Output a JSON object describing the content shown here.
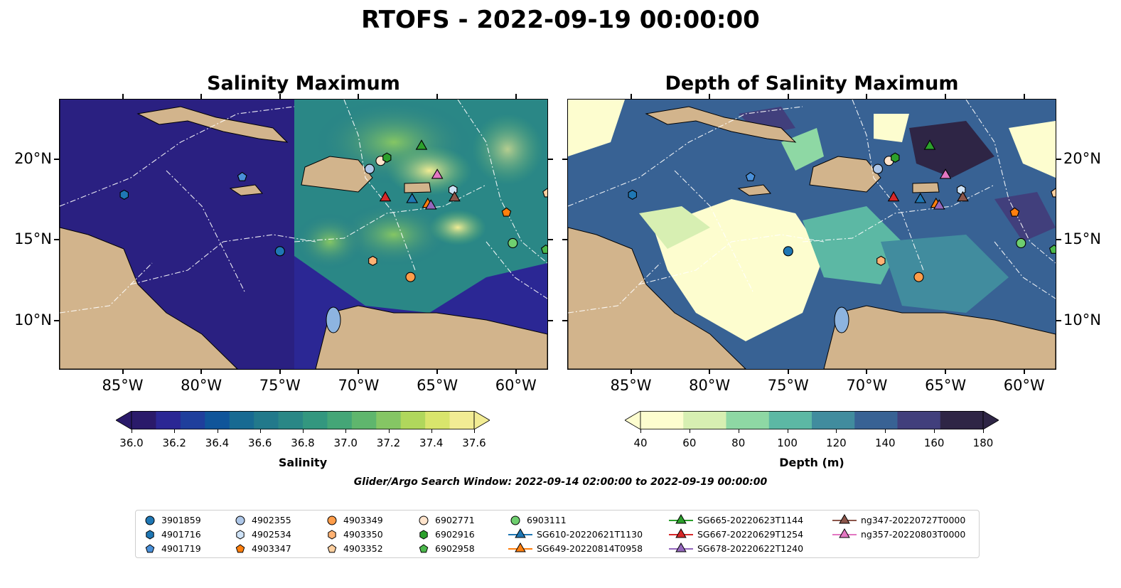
{
  "title": "RTOFS - 2022-09-19 00:00:00",
  "left_map": {
    "title": "Salinity Maximum",
    "colorbar": {
      "label": "Salinity",
      "ticks": [
        "36.0",
        "36.2",
        "36.4",
        "36.6",
        "36.8",
        "37.0",
        "37.2",
        "37.4",
        "37.6"
      ],
      "colors": [
        "#2a1a6a",
        "#2b2794",
        "#1f3f9c",
        "#10559a",
        "#186a92",
        "#22798b",
        "#2a8786",
        "#33977f",
        "#44a677",
        "#5fb66d",
        "#85c664",
        "#b0d75c",
        "#d9e56c",
        "#f2ec94"
      ]
    }
  },
  "right_map": {
    "title": "Depth of Salinity Maximum",
    "colorbar": {
      "label": "Depth (m)",
      "ticks": [
        "40",
        "60",
        "80",
        "100",
        "120",
        "140",
        "160",
        "180"
      ],
      "colors": [
        "#fdfdcf",
        "#d7efb2",
        "#8ed8a4",
        "#5cb8a4",
        "#418c9e",
        "#386294",
        "#413f7c",
        "#2e2545"
      ]
    }
  },
  "longitude_ticks": [
    "85°W",
    "80°W",
    "75°W",
    "70°W",
    "65°W",
    "60°W"
  ],
  "latitude_ticks": [
    "20°N",
    "15°N",
    "10°N"
  ],
  "search_window": "Glider/Argo Search Window: 2022-09-14 02:00:00 to 2022-09-19 00:00:00",
  "legend": {
    "items": [
      {
        "label": "3901859",
        "marker": "circle",
        "color": "#1f77b4"
      },
      {
        "label": "4901716",
        "marker": "hexagon",
        "color": "#1f77b4"
      },
      {
        "label": "4901719",
        "marker": "pentagon",
        "color": "#4a90d9"
      },
      {
        "label": "4902355",
        "marker": "circle",
        "color": "#aec7e8"
      },
      {
        "label": "4902534",
        "marker": "hexagon",
        "color": "#cfe3f7"
      },
      {
        "label": "4903347",
        "marker": "pentagon",
        "color": "#ff7f0e"
      },
      {
        "label": "4903349",
        "marker": "circle",
        "color": "#ff9d4a"
      },
      {
        "label": "4903350",
        "marker": "hexagon",
        "color": "#ffb273"
      },
      {
        "label": "4903352",
        "marker": "pentagon",
        "color": "#ffd0a0"
      },
      {
        "label": "6902771",
        "marker": "circle",
        "color": "#ffe4cc"
      },
      {
        "label": "6902916",
        "marker": "hexagon",
        "color": "#2ca02c"
      },
      {
        "label": "6902958",
        "marker": "pentagon",
        "color": "#4cb84c"
      },
      {
        "label": "6903111",
        "marker": "circle",
        "color": "#6fcf6f"
      },
      {
        "label": "SG610-20220621T1130",
        "marker": "triangle",
        "color": "#1f77b4"
      },
      {
        "label": "SG649-20220814T0958",
        "marker": "triangle",
        "color": "#ff7f0e"
      },
      {
        "label": "SG665-20220623T1144",
        "marker": "triangle",
        "color": "#2ca02c"
      },
      {
        "label": "SG667-20220629T1254",
        "marker": "triangle",
        "color": "#d62728"
      },
      {
        "label": "SG678-20220622T1240",
        "marker": "triangle",
        "color": "#9467bd"
      },
      {
        "label": "ng347-20220727T0000",
        "marker": "triangle",
        "color": "#8c564b"
      },
      {
        "label": "ng357-20220803T0000",
        "marker": "triangle",
        "color": "#e377c2"
      }
    ]
  },
  "observations": [
    {
      "id": "3901859",
      "marker": "circle",
      "color": "#1f77b4",
      "lon": -75.0,
      "lat": 14.3
    },
    {
      "id": "4901716",
      "marker": "hexagon",
      "color": "#1f77b4",
      "lon": -84.9,
      "lat": 17.8
    },
    {
      "id": "4901719",
      "marker": "pentagon",
      "color": "#4a90d9",
      "lon": -77.4,
      "lat": 18.9
    },
    {
      "id": "4902355",
      "marker": "circle",
      "color": "#aec7e8",
      "lon": -69.3,
      "lat": 19.4
    },
    {
      "id": "4902534",
      "marker": "hexagon",
      "color": "#cfe3f7",
      "lon": -64.0,
      "lat": 18.1
    },
    {
      "id": "4903347",
      "marker": "pentagon",
      "color": "#ff7f0e",
      "lon": -60.6,
      "lat": 16.7
    },
    {
      "id": "4903349",
      "marker": "circle",
      "color": "#ff9d4a",
      "lon": -66.7,
      "lat": 12.7
    },
    {
      "id": "4903350",
      "marker": "hexagon",
      "color": "#ffb273",
      "lon": -69.1,
      "lat": 13.7
    },
    {
      "id": "4903352",
      "marker": "pentagon",
      "color": "#ffd0a0",
      "lon": -58.0,
      "lat": 17.9
    },
    {
      "id": "6902771",
      "marker": "circle",
      "color": "#ffe4cc",
      "lon": -68.6,
      "lat": 19.9
    },
    {
      "id": "6902916",
      "marker": "hexagon",
      "color": "#2ca02c",
      "lon": -68.2,
      "lat": 20.1
    },
    {
      "id": "6902958",
      "marker": "pentagon",
      "color": "#4cb84c",
      "lon": -58.1,
      "lat": 14.4
    },
    {
      "id": "6903111",
      "marker": "circle",
      "color": "#6fcf6f",
      "lon": -60.2,
      "lat": 14.8
    },
    {
      "id": "SG610-20220621T1130",
      "marker": "triangle",
      "color": "#1f77b4",
      "lon": -66.6,
      "lat": 17.5
    },
    {
      "id": "SG649-20220814T0958",
      "marker": "triangle",
      "color": "#ff7f0e",
      "lon": -65.6,
      "lat": 17.2
    },
    {
      "id": "SG665-20220623T1144",
      "marker": "triangle",
      "color": "#2ca02c",
      "lon": -66.0,
      "lat": 20.8
    },
    {
      "id": "SG667-20220629T1254",
      "marker": "triangle",
      "color": "#d62728",
      "lon": -68.3,
      "lat": 17.6
    },
    {
      "id": "SG678-20220622T1240",
      "marker": "triangle",
      "color": "#9467bd",
      "lon": -65.4,
      "lat": 17.1
    },
    {
      "id": "ng347-20220727T0000",
      "marker": "triangle",
      "color": "#8c564b",
      "lon": -63.9,
      "lat": 17.6
    },
    {
      "id": "ng357-20220803T0000",
      "marker": "triangle",
      "color": "#e377c2",
      "lon": -65.0,
      "lat": 19.0
    }
  ]
}
